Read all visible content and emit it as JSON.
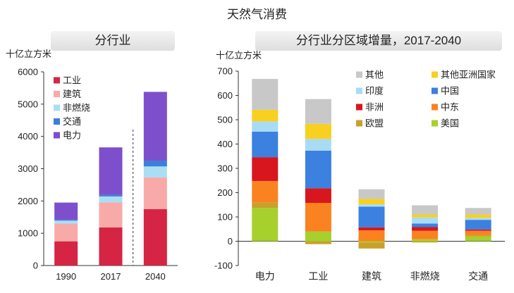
{
  "title": "天然气消费",
  "chart_data": [
    {
      "type": "bar",
      "stacked": true,
      "title": "分行业",
      "ylabel": "十亿立方米",
      "ylim": [
        0,
        6000
      ],
      "yticks": [
        0,
        1000,
        2000,
        3000,
        4000,
        5000,
        6000
      ],
      "categories": [
        "1990",
        "2017",
        "2040"
      ],
      "series": [
        {
          "name": "工业",
          "color": "#d62445",
          "values": [
            750,
            1180,
            1750
          ]
        },
        {
          "name": "建筑",
          "color": "#f8aaa8",
          "values": [
            550,
            780,
            980
          ]
        },
        {
          "name": "非燃烧",
          "color": "#a9def4",
          "values": [
            90,
            180,
            340
          ]
        },
        {
          "name": "交通",
          "color": "#3d7fd8",
          "values": [
            30,
            50,
            180
          ]
        },
        {
          "name": "电力",
          "color": "#7d4fcc",
          "values": [
            530,
            1470,
            2130
          ]
        }
      ],
      "legend": "top-left",
      "dashed_divider_between": [
        "2017",
        "2040"
      ]
    },
    {
      "type": "bar",
      "stacked": true,
      "title": "分行业分区域增量，2017-2040",
      "ylabel": "十亿立方米",
      "ylim": [
        -100,
        700
      ],
      "yticks": [
        -100,
        0,
        100,
        200,
        300,
        400,
        500,
        600,
        700
      ],
      "categories": [
        "电力",
        "工业",
        "建筑",
        "非燃烧",
        "交通"
      ],
      "series": [
        {
          "name": "美国",
          "color": "#a6d02c",
          "values": [
            137,
            40,
            -5,
            8,
            20
          ]
        },
        {
          "name": "欧盟",
          "color": "#c8a02a",
          "values": [
            23,
            -12,
            -25,
            -5,
            5
          ]
        },
        {
          "name": "中东",
          "color": "#fa8220",
          "values": [
            88,
            118,
            45,
            35,
            18
          ]
        },
        {
          "name": "非洲",
          "color": "#d8161e",
          "values": [
            98,
            60,
            12,
            15,
            5
          ]
        },
        {
          "name": "中国",
          "color": "#3c80e0",
          "values": [
            105,
            155,
            85,
            15,
            40
          ]
        },
        {
          "name": "印度",
          "color": "#a8dcf4",
          "values": [
            42,
            48,
            10,
            25,
            8
          ]
        },
        {
          "name": "其他亚洲国家",
          "color": "#f8d020",
          "values": [
            48,
            62,
            22,
            12,
            14
          ]
        },
        {
          "name": "其他",
          "color": "#c8c8c8",
          "values": [
            127,
            102,
            40,
            38,
            27
          ]
        }
      ],
      "legend_order": [
        "其他",
        "其他亚洲国家",
        "印度",
        "中国",
        "非洲",
        "中东",
        "欧盟",
        "美国"
      ],
      "legend": "top-right"
    }
  ]
}
